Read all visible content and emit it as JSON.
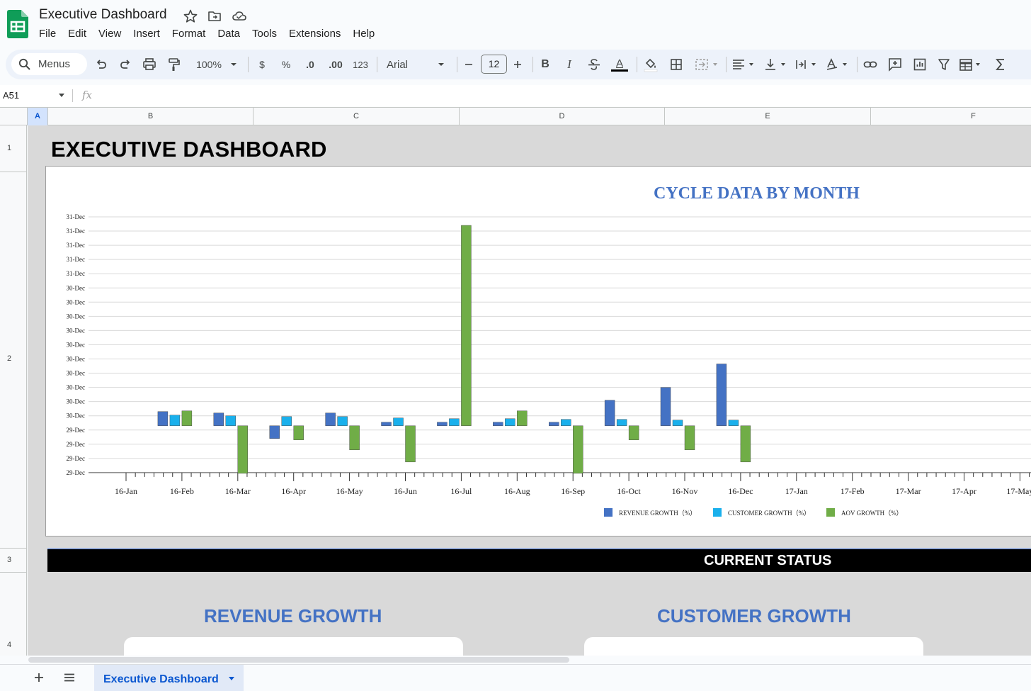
{
  "app": {
    "doc_title": "Executive Dashboard",
    "menus": [
      "File",
      "Edit",
      "View",
      "Insert",
      "Format",
      "Data",
      "Tools",
      "Extensions",
      "Help"
    ]
  },
  "toolbar": {
    "search_label": "Menus",
    "zoom": "100%",
    "currency": "$",
    "percent": "%",
    "dec_decrease": ".0",
    "dec_increase": ".00",
    "number_format": "123",
    "font": "Arial",
    "font_size": "12",
    "bold": "B",
    "italic": "I",
    "text_color": "A"
  },
  "formula_bar": {
    "cell_ref": "A51",
    "fx": "fx"
  },
  "grid": {
    "columns": [
      "A",
      "B",
      "C",
      "D",
      "E",
      "F"
    ],
    "selected_column": "A",
    "rows": [
      "1",
      "2",
      "3",
      "4"
    ]
  },
  "dashboard": {
    "title": "EXECUTIVE DASHBOARD",
    "status_header": "CURRENT STATUS",
    "sections": [
      "REVENUE GROWTH",
      "CUSTOMER GROWTH"
    ]
  },
  "chart_data": {
    "type": "bar",
    "title": "CYCLE DATA BY MONTH",
    "y_tick_labels": [
      "31-Dec",
      "31-Dec",
      "31-Dec",
      "31-Dec",
      "31-Dec",
      "30-Dec",
      "30-Dec",
      "30-Dec",
      "30-Dec",
      "30-Dec",
      "30-Dec",
      "30-Dec",
      "30-Dec",
      "30-Dec",
      "30-Dec",
      "29-Dec",
      "29-Dec",
      "29-Dec",
      "29-Dec"
    ],
    "y_tick_count": 19,
    "y_zero_index": 14.7,
    "categories": [
      "16-Jan",
      "16-Feb",
      "16-Mar",
      "16-Apr",
      "16-May",
      "16-Jun",
      "16-Jul",
      "16-Aug",
      "16-Sep",
      "16-Oct",
      "16-Nov",
      "16-Dec",
      "17-Jan",
      "17-Feb",
      "17-Mar",
      "17-Apr",
      "17-May"
    ],
    "series": [
      {
        "name": "REVENUE GROWTH（%）",
        "color": "#4472c4",
        "values": [
          null,
          1.0,
          0.9,
          -0.9,
          0.9,
          0.25,
          0.25,
          0.25,
          0.25,
          1.8,
          2.7,
          4.35,
          null,
          null,
          null,
          null,
          null
        ]
      },
      {
        "name": "CUSTOMER GROWTH（%）",
        "color": "#1ab0ec",
        "values": [
          null,
          0.75,
          0.7,
          0.65,
          0.65,
          0.55,
          0.5,
          0.5,
          0.45,
          0.45,
          0.4,
          0.4,
          null,
          null,
          null,
          null,
          null
        ]
      },
      {
        "name": "AOV GROWTH（%）",
        "color": "#70ad47",
        "values": [
          null,
          1.05,
          -3.35,
          -1.0,
          -1.7,
          -2.55,
          14.1,
          1.05,
          -3.35,
          -1.0,
          -1.7,
          -2.55,
          null,
          null,
          null,
          null,
          null
        ]
      }
    ],
    "legend_position": "bottom",
    "grid": true
  }
}
